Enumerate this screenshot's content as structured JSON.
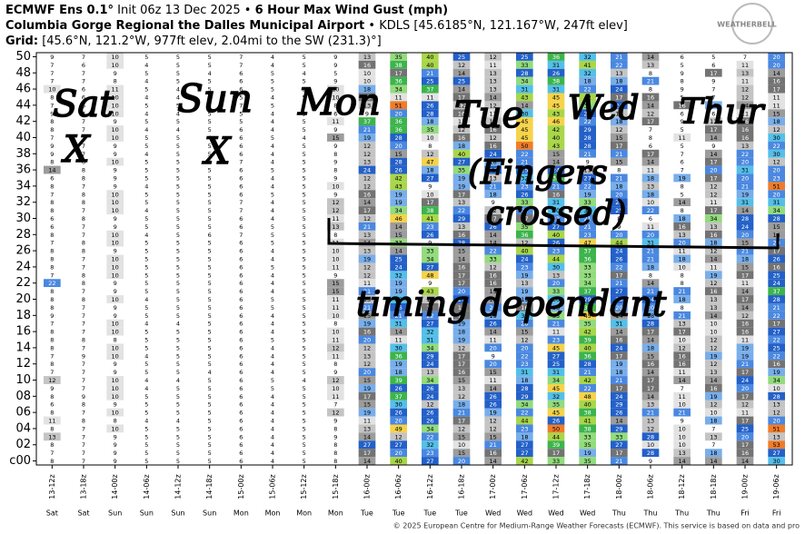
{
  "chart_data": {
    "type": "heatmap",
    "title_parts": [
      "ECMWF Ens 0.1°",
      "Init 06z 13 Dec 2025 •",
      "6 Hour Max Wind Gust (mph)"
    ],
    "location_parts": [
      "Columbia Gorge Regional the Dalles Municipal Airport",
      "• KDLS [45.6185°N, 121.167°W, 247ft elev]"
    ],
    "grid_parts": [
      "Grid:",
      "[45.6°N, 121.2°W, 977ft elev, 2.04mi to the SW (231.3)°]"
    ],
    "logo": "WEATHERBELL",
    "footer": "© 2025 European Centre for Medium-Range Weather Forecasts (ECMWF). This service is based on data and pro",
    "x": [
      "13-12z",
      "13-18z",
      "14-00z",
      "14-06z",
      "14-12z",
      "14-18z",
      "15-00z",
      "15-06z",
      "15-12z",
      "15-18z",
      "16-00z",
      "16-06z",
      "16-12z",
      "16-18z",
      "17-00z",
      "17-06z",
      "17-12z",
      "17-18z",
      "18-00z",
      "18-06z",
      "18-12z",
      "18-18z",
      "19-00z",
      "19-06z"
    ],
    "days": [
      "Sat",
      "Sat",
      "Sun",
      "Sun",
      "Sun",
      "Sun",
      "Mon",
      "Mon",
      "Mon",
      "Mon",
      "Tue",
      "Tue",
      "Tue",
      "Tue",
      "Wed",
      "Wed",
      "Wed",
      "Wed",
      "Thu",
      "Thu",
      "Thu",
      "Thu",
      "Fri",
      "Fri"
    ],
    "row_labels": [
      "50",
      null,
      "48",
      null,
      "46",
      null,
      "44",
      null,
      "42",
      null,
      "40",
      null,
      "38",
      null,
      "36",
      null,
      "34",
      null,
      "32",
      null,
      "30",
      null,
      "28",
      null,
      "26",
      null,
      "24",
      null,
      "22",
      null,
      "20",
      null,
      "18",
      null,
      "16",
      null,
      "14",
      null,
      "12",
      null,
      "10",
      null,
      "08",
      null,
      "06",
      null,
      "04",
      null,
      "02",
      null,
      "c00"
    ],
    "values": [
      [
        9,
        7,
        10,
        5,
        5,
        5,
        7,
        4,
        5,
        9,
        13,
        35,
        40,
        25,
        12,
        25,
        36,
        32,
        21,
        14,
        6,
        5,
        7,
        20
      ],
      [
        7,
        6,
        10,
        4,
        5,
        5,
        7,
        4,
        5,
        9,
        16,
        38,
        40,
        12,
        11,
        33,
        31,
        41,
        22,
        13,
        5,
        6,
        11,
        20
      ],
      [
        7,
        7,
        9,
        5,
        5,
        4,
        6,
        5,
        4,
        5,
        10,
        17,
        21,
        14,
        13,
        28,
        26,
        32,
        13,
        8,
        9,
        17,
        13,
        14
      ],
      [
        7,
        7,
        8,
        4,
        5,
        5,
        6,
        5,
        5,
        9,
        10,
        36,
        25,
        25,
        13,
        34,
        38,
        18,
        18,
        21,
        8,
        9,
        11,
        16
      ],
      [
        10,
        6,
        11,
        5,
        4,
        5,
        6,
        5,
        5,
        10,
        18,
        34,
        37,
        14,
        13,
        31,
        31,
        22,
        24,
        8,
        9,
        7,
        12,
        17
      ],
      [
        8,
        6,
        10,
        4,
        4,
        5,
        5,
        4,
        5,
        10,
        16,
        11,
        11,
        17,
        14,
        43,
        45,
        42,
        17,
        16,
        5,
        7,
        12,
        11
      ],
      [
        7,
        6,
        10,
        5,
        5,
        5,
        7,
        5,
        5,
        8,
        13,
        51,
        26,
        12,
        12,
        14,
        45,
        33,
        24,
        14,
        16,
        19,
        14,
        11
      ],
      [
        9,
        7,
        10,
        4,
        4,
        5,
        5,
        4,
        5,
        6,
        9,
        20,
        28,
        16,
        11,
        30,
        43,
        25,
        13,
        12,
        6,
        6,
        11,
        15
      ],
      [
        8,
        7,
        9,
        5,
        5,
        5,
        5,
        4,
        5,
        11,
        37,
        36,
        18,
        11,
        13,
        45,
        46,
        22,
        18,
        17,
        9,
        12,
        16,
        18
      ],
      [
        8,
        7,
        10,
        4,
        4,
        5,
        6,
        4,
        5,
        9,
        21,
        36,
        35,
        12,
        16,
        45,
        42,
        29,
        12,
        7,
        5,
        17,
        16,
        12
      ],
      [
        7,
        7,
        10,
        5,
        5,
        4,
        6,
        5,
        4,
        15,
        19,
        28,
        10,
        16,
        12,
        45,
        40,
        28,
        15,
        8,
        11,
        14,
        16,
        30
      ],
      [
        9,
        7,
        9,
        5,
        5,
        5,
        6,
        4,
        5,
        9,
        12,
        20,
        8,
        18,
        16,
        50,
        43,
        28,
        17,
        6,
        5,
        9,
        13,
        22
      ],
      [
        9,
        7,
        9,
        4,
        5,
        5,
        6,
        4,
        5,
        8,
        12,
        15,
        12,
        40,
        24,
        22,
        15,
        21,
        21,
        17,
        7,
        14,
        22,
        30
      ],
      [
        8,
        6,
        10,
        5,
        5,
        5,
        7,
        4,
        5,
        9,
        13,
        28,
        47,
        27,
        18,
        21,
        14,
        9,
        15,
        14,
        6,
        17,
        20,
        12
      ],
      [
        14,
        8,
        9,
        5,
        5,
        5,
        6,
        5,
        5,
        8,
        24,
        26,
        18,
        35,
        26,
        25,
        24,
        13,
        8,
        11,
        7,
        20,
        31,
        20
      ],
      [
        6,
        8,
        9,
        5,
        5,
        5,
        6,
        4,
        5,
        9,
        12,
        42,
        27,
        19,
        13,
        32,
        38,
        27,
        21,
        18,
        19,
        17,
        20,
        23
      ],
      [
        8,
        7,
        9,
        4,
        5,
        5,
        6,
        4,
        5,
        10,
        12,
        43,
        9,
        19,
        21,
        23,
        21,
        22,
        18,
        13,
        8,
        12,
        21,
        51
      ],
      [
        7,
        8,
        10,
        5,
        5,
        5,
        6,
        5,
        5,
        9,
        16,
        19,
        10,
        17,
        18,
        26,
        16,
        19,
        20,
        18,
        5,
        12,
        19,
        20
      ],
      [
        8,
        8,
        10,
        5,
        5,
        5,
        7,
        4,
        5,
        12,
        14,
        19,
        17,
        13,
        9,
        33,
        31,
        33,
        28,
        10,
        14,
        11,
        31,
        31
      ],
      [
        8,
        7,
        10,
        4,
        5,
        5,
        7,
        4,
        5,
        12,
        17,
        34,
        38,
        22,
        12,
        22,
        30,
        30,
        25,
        22,
        8,
        17,
        14,
        34
      ],
      [
        6,
        8,
        9,
        5,
        5,
        5,
        6,
        4,
        5,
        11,
        12,
        46,
        41,
        29,
        17,
        17,
        23,
        21,
        8,
        6,
        18,
        34,
        28,
        28
      ],
      [
        6,
        7,
        9,
        5,
        5,
        5,
        6,
        5,
        5,
        13,
        21,
        14,
        23,
        13,
        26,
        35,
        27,
        21,
        9,
        11,
        16,
        13,
        24,
        15
      ],
      [
        8,
        7,
        10,
        4,
        5,
        6,
        7,
        5,
        5,
        8,
        13,
        15,
        26,
        16,
        14,
        36,
        40,
        23,
        20,
        20,
        13,
        16,
        20,
        14
      ],
      [
        7,
        8,
        10,
        5,
        5,
        5,
        6,
        5,
        5,
        11,
        14,
        33,
        9,
        28,
        14,
        12,
        26,
        47,
        44,
        31,
        20,
        18,
        15,
        20
      ],
      [
        8,
        8,
        9,
        5,
        5,
        5,
        6,
        4,
        5,
        10,
        13,
        14,
        33,
        15,
        22,
        40,
        23,
        37,
        24,
        21,
        11,
        12,
        21,
        17
      ],
      [
        8,
        7,
        10,
        5,
        5,
        5,
        6,
        4,
        5,
        10,
        19,
        25,
        34,
        14,
        33,
        24,
        44,
        36,
        26,
        21,
        18,
        14,
        18,
        26
      ],
      [
        8,
        7,
        10,
        5,
        5,
        5,
        6,
        5,
        5,
        11,
        12,
        24,
        27,
        16,
        12,
        23,
        30,
        33,
        22,
        18,
        10,
        11,
        15,
        16
      ],
      [
        7,
        8,
        10,
        5,
        5,
        5,
        6,
        4,
        5,
        9,
        12,
        32,
        48,
        17,
        16,
        19,
        13,
        33,
        17,
        8,
        8,
        19,
        17,
        25
      ],
      [
        22,
        8,
        9,
        5,
        5,
        5,
        6,
        4,
        5,
        15,
        11,
        19,
        9,
        17,
        16,
        13,
        20,
        34,
        21,
        14,
        8,
        12,
        11,
        24
      ],
      [
        8,
        7,
        9,
        5,
        5,
        5,
        6,
        4,
        5,
        15,
        21,
        19,
        43,
        20,
        15,
        19,
        33,
        37,
        27,
        21,
        21,
        16,
        14,
        37
      ],
      [
        8,
        8,
        10,
        4,
        5,
        5,
        6,
        5,
        5,
        11,
        13,
        30,
        12,
        27,
        14,
        19,
        30,
        29,
        26,
        24,
        18,
        13,
        17,
        28
      ],
      [
        8,
        7,
        9,
        5,
        5,
        5,
        6,
        5,
        5,
        11,
        21,
        26,
        17,
        16,
        20,
        16,
        18,
        39,
        20,
        20,
        8,
        13,
        14,
        21
      ],
      [
        9,
        7,
        9,
        5,
        5,
        5,
        6,
        4,
        5,
        10,
        15,
        21,
        22,
        17,
        19,
        32,
        35,
        45,
        14,
        18,
        21,
        14,
        12,
        22
      ],
      [
        7,
        7,
        10,
        4,
        4,
        5,
        6,
        4,
        5,
        8,
        19,
        31,
        27,
        19,
        26,
        20,
        21,
        35,
        31,
        28,
        13,
        10,
        16,
        17
      ],
      [
        8,
        7,
        10,
        5,
        5,
        5,
        6,
        4,
        5,
        10,
        16,
        14,
        32,
        18,
        14,
        15,
        11,
        42,
        14,
        17,
        17,
        10,
        16,
        27
      ],
      [
        8,
        8,
        8,
        5,
        5,
        5,
        6,
        5,
        5,
        11,
        20,
        11,
        31,
        19,
        11,
        12,
        23,
        39,
        16,
        14,
        10,
        12,
        11,
        22
      ],
      [
        8,
        7,
        10,
        5,
        5,
        5,
        6,
        4,
        5,
        12,
        12,
        30,
        34,
        12,
        20,
        20,
        45,
        40,
        24,
        18,
        12,
        12,
        19,
        25
      ],
      [
        7,
        9,
        10,
        4,
        5,
        5,
        6,
        4,
        5,
        11,
        13,
        36,
        29,
        17,
        9,
        22,
        27,
        36,
        17,
        15,
        16,
        19,
        19,
        22
      ],
      [
        8,
        7,
        9,
        5,
        5,
        5,
        6,
        4,
        5,
        8,
        12,
        19,
        24,
        17,
        20,
        23,
        25,
        28,
        19,
        16,
        16,
        12,
        21,
        16
      ],
      [
        7,
        7,
        9,
        5,
        5,
        4,
        6,
        4,
        5,
        9,
        20,
        18,
        13,
        16,
        15,
        31,
        31,
        21,
        18,
        14,
        11,
        13,
        17,
        19
      ],
      [
        12,
        7,
        10,
        4,
        4,
        5,
        6,
        5,
        4,
        12,
        15,
        39,
        34,
        15,
        11,
        18,
        34,
        42,
        21,
        17,
        14,
        14,
        24,
        34
      ],
      [
        9,
        7,
        10,
        4,
        5,
        5,
        6,
        5,
        5,
        10,
        19,
        26,
        26,
        13,
        14,
        28,
        45,
        22,
        17,
        17,
        7,
        16,
        20,
        10
      ],
      [
        8,
        9,
        10,
        5,
        5,
        5,
        6,
        4,
        5,
        11,
        17,
        37,
        24,
        12,
        26,
        29,
        32,
        48,
        24,
        14,
        11,
        19,
        17,
        28
      ],
      [
        6,
        8,
        9,
        5,
        5,
        5,
        6,
        4,
        5,
        7,
        15,
        30,
        12,
        18,
        26,
        34,
        35,
        40,
        29,
        13,
        10,
        12,
        12,
        13
      ],
      [
        8,
        7,
        10,
        5,
        5,
        5,
        6,
        4,
        5,
        12,
        19,
        26,
        26,
        21,
        19,
        22,
        45,
        38,
        26,
        21,
        21,
        10,
        11,
        12
      ],
      [
        11,
        8,
        8,
        4,
        4,
        5,
        6,
        4,
        5,
        9,
        11,
        20,
        26,
        17,
        12,
        44,
        26,
        41,
        14,
        13,
        9,
        18,
        17,
        20
      ],
      [
        8,
        7,
        10,
        5,
        5,
        5,
        6,
        4,
        5,
        8,
        13,
        49,
        34,
        12,
        12,
        23,
        50,
        38,
        29,
        12,
        10,
        7,
        25,
        51
      ],
      [
        13,
        7,
        9,
        5,
        5,
        5,
        6,
        4,
        5,
        9,
        14,
        12,
        22,
        15,
        15,
        18,
        44,
        33,
        33,
        28,
        10,
        13,
        20,
        13
      ],
      [
        8,
        7,
        9,
        5,
        5,
        5,
        6,
        4,
        5,
        8,
        27,
        27,
        32,
        10,
        21,
        27,
        39,
        35,
        27,
        10,
        10,
        7,
        17,
        53
      ],
      [
        7,
        7,
        9,
        5,
        5,
        5,
        6,
        4,
        5,
        8,
        17,
        20,
        23,
        15,
        16,
        27,
        17,
        19,
        17,
        28,
        13,
        18,
        16,
        27
      ],
      [
        8,
        7,
        9,
        5,
        5,
        5,
        6,
        4,
        5,
        8,
        14,
        40,
        27,
        20,
        14,
        42,
        33,
        35,
        21,
        9,
        14,
        14,
        14,
        30
      ]
    ],
    "annotations": [
      "Sat",
      "Sun",
      "Mon",
      "Tue",
      "Wed",
      "Thur",
      "X",
      "X",
      "(Fingers",
      "crossed)",
      "timing dependant"
    ]
  }
}
